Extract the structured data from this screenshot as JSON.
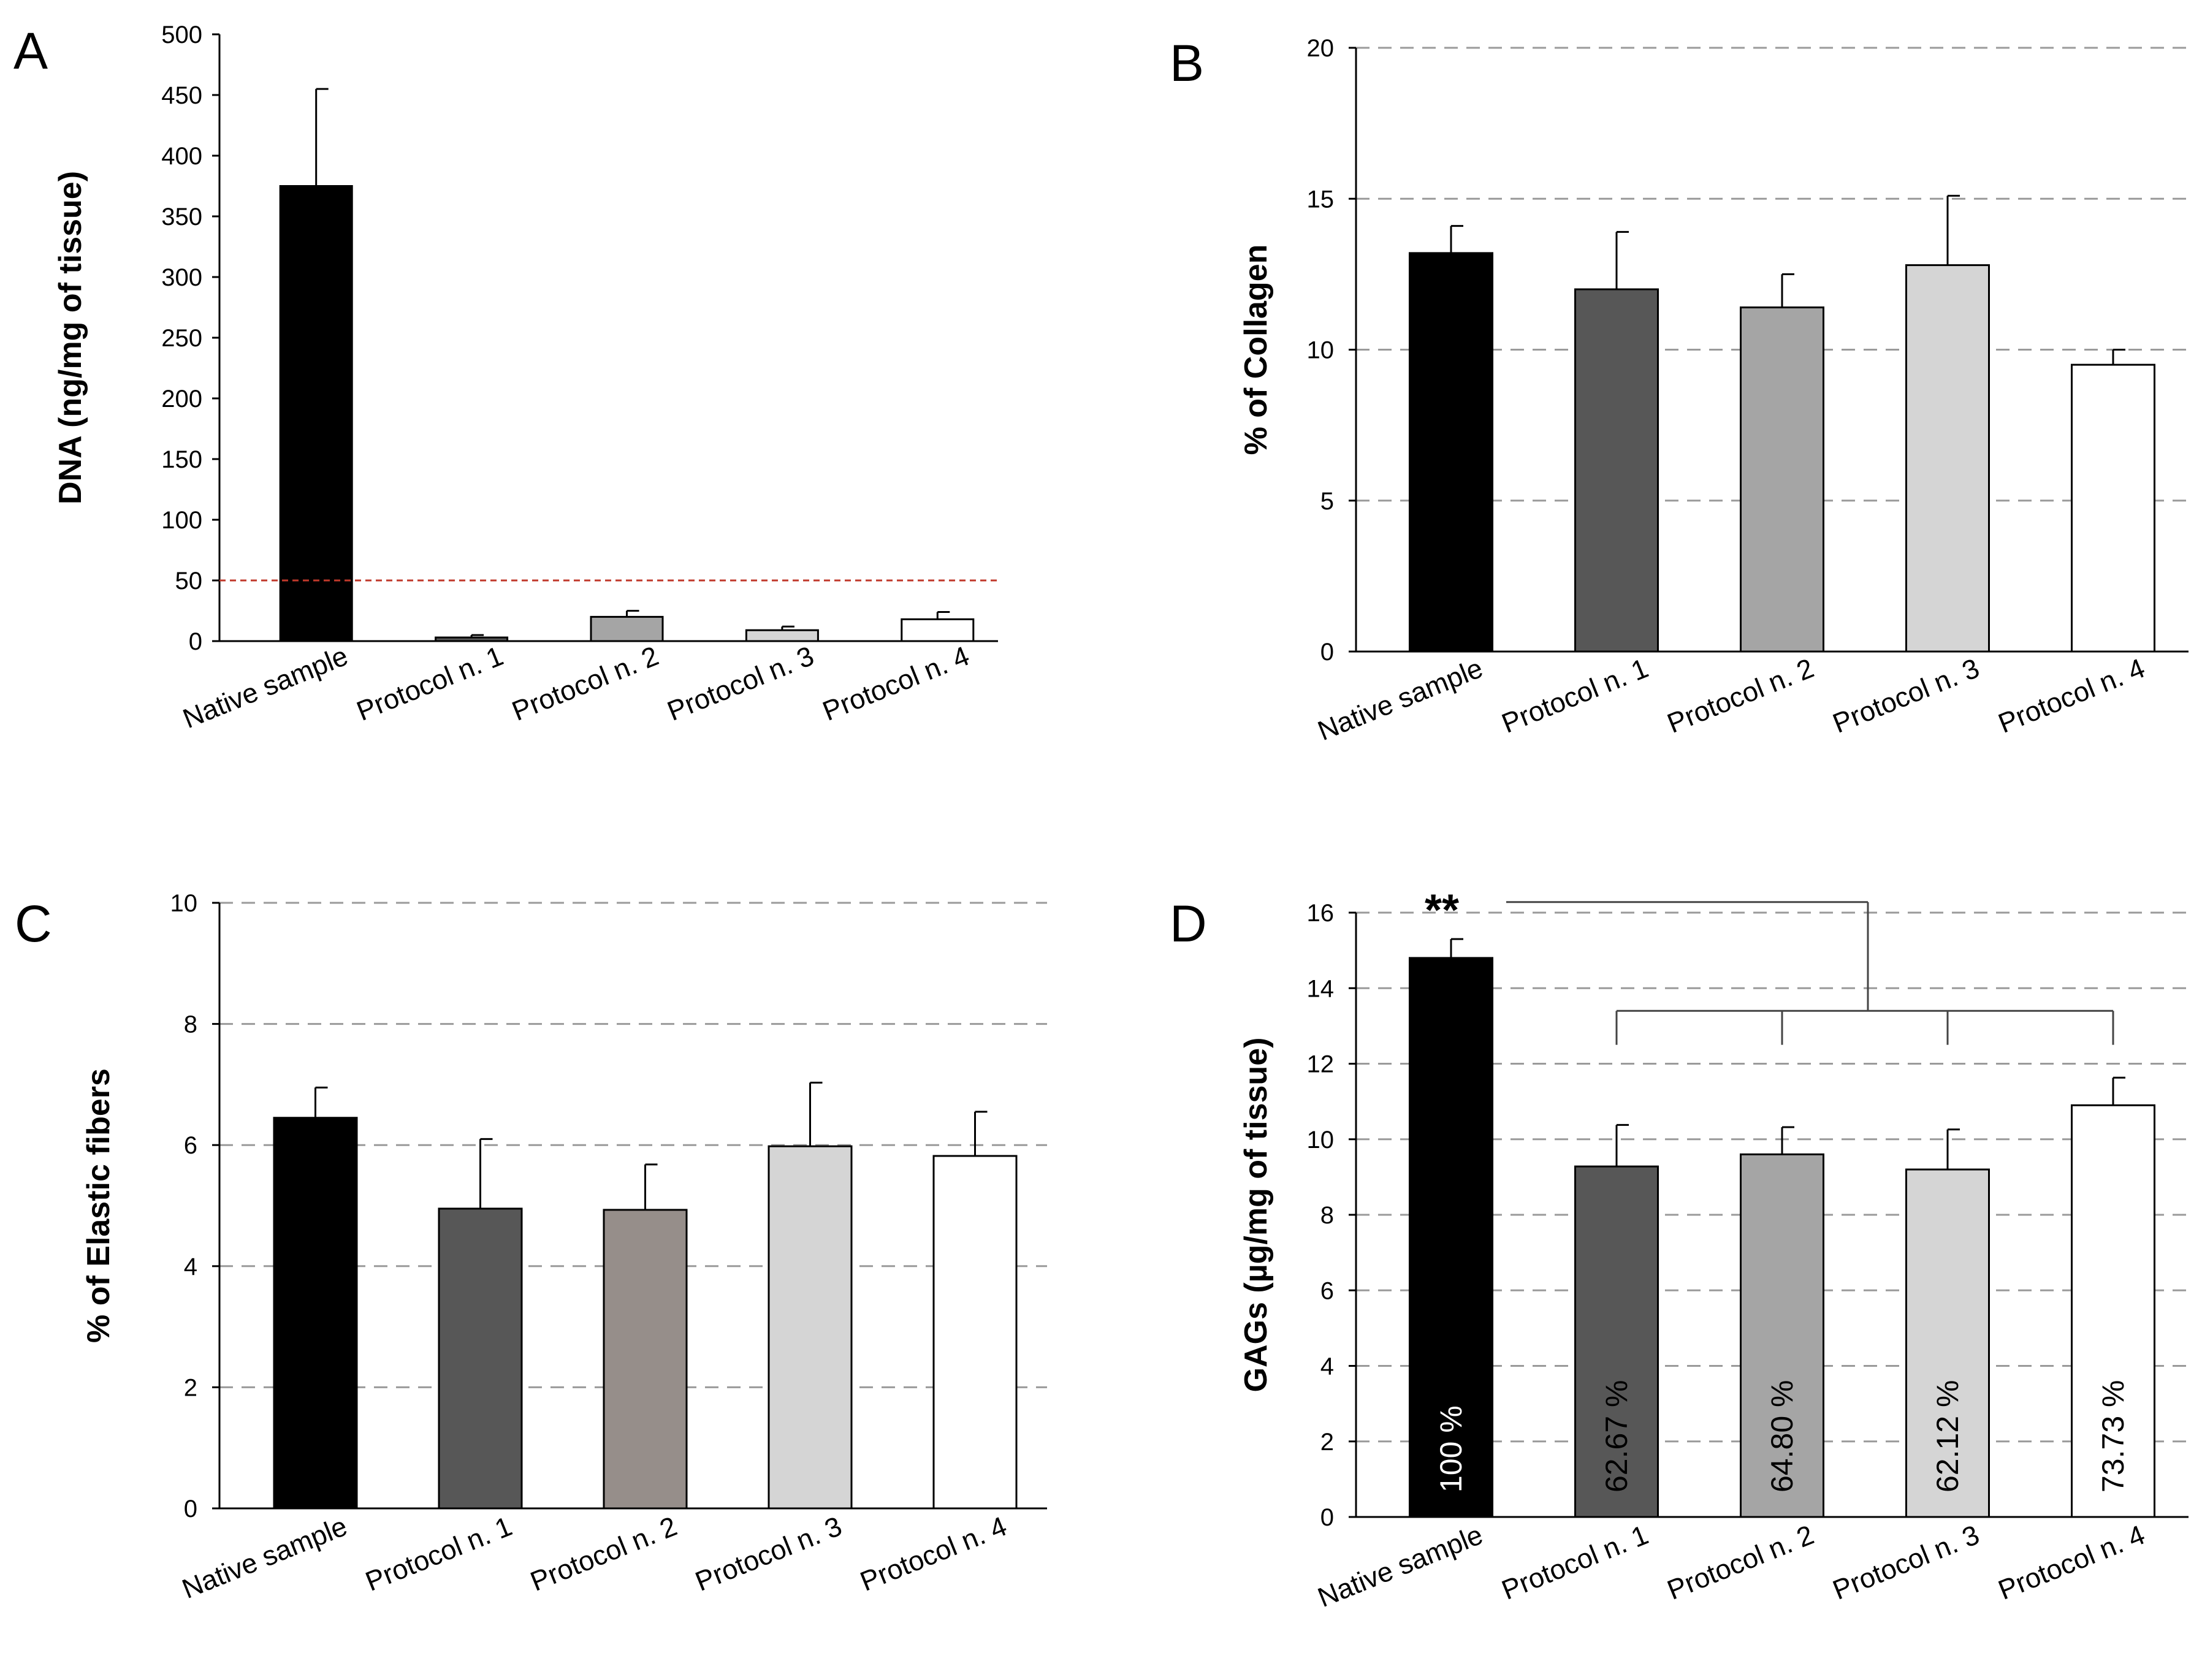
{
  "colors": {
    "native": "#000000",
    "protocol1": "#575757",
    "protocol2": "#a5a5a5",
    "protocol3": "#d5d5d5",
    "protocol4": "#ffffff",
    "panelC_protocol2": "#968e8a",
    "threshold": "#c0392b",
    "grid": "#9a9a9a"
  },
  "chart_data": [
    {
      "panel": "A",
      "type": "bar",
      "ylabel": "DNA (ng/mg of tissue)",
      "categories": [
        "Native sample",
        "Protocol n. 1",
        "Protocol n. 2",
        "Protocol n. 3",
        "Protocol n. 4"
      ],
      "values": [
        375,
        3,
        20,
        9,
        18
      ],
      "errors": [
        80,
        2,
        5,
        3,
        6
      ],
      "ylim": [
        0,
        500
      ],
      "yticks": [
        0,
        50,
        100,
        150,
        200,
        250,
        300,
        350,
        400,
        450,
        500
      ],
      "grid": false,
      "threshold": 50
    },
    {
      "panel": "B",
      "type": "bar",
      "ylabel": "% of Collagen",
      "categories": [
        "Native sample",
        "Protocol n. 1",
        "Protocol n. 2",
        "Protocol n. 3",
        "Protocol n. 4"
      ],
      "values": [
        13.2,
        12.0,
        11.4,
        12.8,
        9.5
      ],
      "errors": [
        0.9,
        1.9,
        1.1,
        2.3,
        0.5
      ],
      "ylim": [
        0,
        20
      ],
      "yticks": [
        0,
        5,
        10,
        15,
        20
      ],
      "grid": true
    },
    {
      "panel": "C",
      "type": "bar",
      "ylabel": "% of Elastic fibers",
      "categories": [
        "Native sample",
        "Protocol n. 1",
        "Protocol n. 2",
        "Protocol n. 3",
        "Protocol n. 4"
      ],
      "values": [
        6.45,
        4.95,
        4.93,
        5.98,
        5.82
      ],
      "errors": [
        0.5,
        1.15,
        0.75,
        1.05,
        0.73
      ],
      "ylim": [
        0,
        10
      ],
      "yticks": [
        0,
        2,
        4,
        6,
        8,
        10
      ],
      "grid": true
    },
    {
      "panel": "D",
      "type": "bar",
      "ylabel": "GAGs (µg/mg of tissue)",
      "categories": [
        "Native sample",
        "Protocol n. 1",
        "Protocol n. 2",
        "Protocol n. 3",
        "Protocol n. 4"
      ],
      "values": [
        14.8,
        9.28,
        9.6,
        9.2,
        10.9
      ],
      "errors": [
        0.5,
        1.1,
        0.72,
        1.06,
        0.73
      ],
      "ylim": [
        0,
        16
      ],
      "yticks": [
        0,
        2,
        4,
        6,
        8,
        10,
        12,
        14,
        16
      ],
      "grid": true,
      "bar_labels": [
        "100 %",
        "62.67 %",
        "64.80 %",
        "62.12 %",
        "73.73 %"
      ],
      "significance": "**"
    }
  ]
}
